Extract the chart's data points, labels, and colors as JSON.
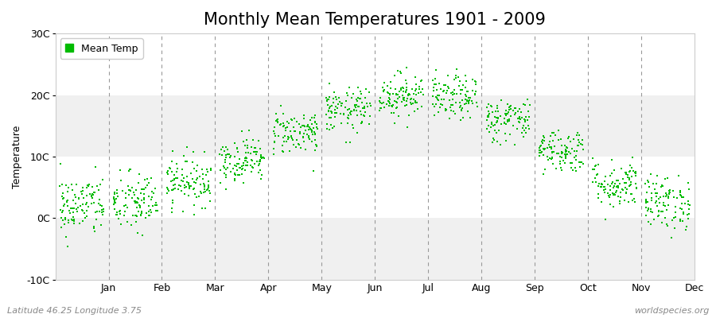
{
  "title": "Monthly Mean Temperatures 1901 - 2009",
  "ylabel": "Temperature",
  "footer_left": "Latitude 46.25 Longitude 3.75",
  "footer_right": "worldspecies.org",
  "legend_label": "Mean Temp",
  "ylim": [
    -10,
    30
  ],
  "yticks": [
    -10,
    0,
    10,
    20,
    30
  ],
  "ytick_labels": [
    "-10C",
    "0C",
    "10C",
    "20C",
    "30C"
  ],
  "months": [
    "Jan",
    "Feb",
    "Mar",
    "Apr",
    "May",
    "Jun",
    "Jul",
    "Aug",
    "Sep",
    "Oct",
    "Nov",
    "Dec"
  ],
  "dot_color": "#00bb00",
  "bg_color": "#ffffff",
  "band_color_light": "#f0f0f0",
  "band_color_white": "#ffffff",
  "title_fontsize": 15,
  "axis_fontsize": 9,
  "footer_fontsize": 8,
  "n_years": 109,
  "monthly_means": [
    2.0,
    2.5,
    6.0,
    9.5,
    14.0,
    17.5,
    20.0,
    19.5,
    16.0,
    11.0,
    5.5,
    2.5
  ],
  "monthly_stds": [
    2.5,
    2.5,
    2.0,
    1.8,
    1.8,
    1.8,
    1.8,
    1.8,
    1.8,
    1.8,
    2.0,
    2.2
  ],
  "dashed_line_color": "#999999",
  "spine_color": "#cccccc"
}
